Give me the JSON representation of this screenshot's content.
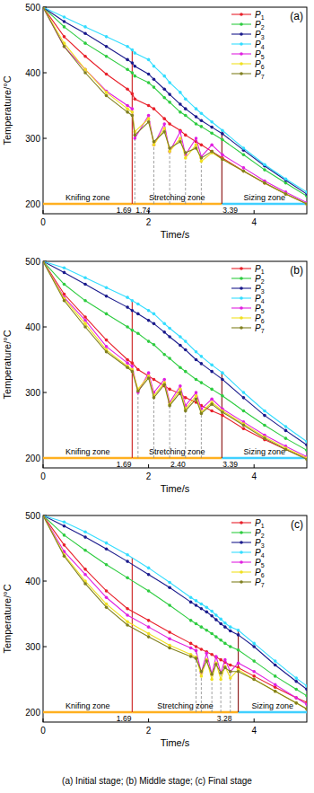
{
  "chart_data": [
    {
      "type": "line",
      "title": "(a)",
      "x_label": "Time/s",
      "y_label": "Temperature/°C",
      "x": [
        0,
        0.4,
        0.8,
        1.2,
        1.6,
        1.69,
        1.74,
        2.0,
        2.1,
        2.3,
        2.4,
        2.6,
        2.7,
        2.9,
        3.0,
        3.2,
        3.4,
        3.8,
        4.2,
        4.6,
        5.0
      ],
      "xlim": [
        0,
        5
      ],
      "xticks": [
        0,
        2,
        4
      ],
      "ylim": [
        185,
        500
      ],
      "yticks": [
        200,
        300,
        400,
        500
      ],
      "legend": "upper right",
      "marker": "circle",
      "zones": [
        {
          "name": "Knifing zone",
          "start": 0,
          "end": 1.69
        },
        {
          "name": "Stretching zone",
          "start": 1.69,
          "end": 3.39
        },
        {
          "name": "Sizing zone",
          "start": 3.39,
          "end": 5
        }
      ],
      "time_marks": [
        {
          "value": 1.69,
          "label": "1.69"
        },
        {
          "value": 1.74,
          "label": "1.74"
        },
        {
          "value": 3.39,
          "label": "3.39"
        }
      ],
      "dashed_times": [
        1.74,
        2.1,
        2.4,
        2.7,
        3.0
      ],
      "series": [
        {
          "name": "P1",
          "color": "#e8202a",
          "values": [
            500,
            455,
            425,
            398,
            375,
            368,
            360,
            350,
            345,
            330,
            322,
            312,
            305,
            295,
            290,
            280,
            270,
            250,
            232,
            215,
            200
          ]
        },
        {
          "name": "P2",
          "color": "#2ecc40",
          "values": [
            500,
            470,
            445,
            425,
            405,
            400,
            395,
            385,
            378,
            362,
            355,
            340,
            335,
            322,
            318,
            308,
            298,
            275,
            252,
            232,
            212
          ]
        },
        {
          "name": "P3",
          "color": "#1a1a8c",
          "values": [
            500,
            478,
            460,
            440,
            420,
            415,
            410,
            398,
            390,
            375,
            367,
            352,
            345,
            333,
            327,
            317,
            307,
            282,
            258,
            236,
            215
          ]
        },
        {
          "name": "P4",
          "color": "#33ddff",
          "values": [
            500,
            485,
            470,
            455,
            440,
            435,
            430,
            420,
            410,
            395,
            385,
            370,
            360,
            345,
            338,
            325,
            312,
            285,
            260,
            238,
            218
          ]
        },
        {
          "name": "P5",
          "color": "#e020e0",
          "values": [
            500,
            440,
            405,
            372,
            350,
            345,
            300,
            335,
            290,
            322,
            280,
            310,
            275,
            300,
            272,
            290,
            275,
            255,
            235,
            218,
            202
          ]
        },
        {
          "name": "P6",
          "color": "#f0e020",
          "values": [
            500,
            445,
            405,
            370,
            345,
            340,
            310,
            330,
            290,
            315,
            280,
            300,
            270,
            290,
            265,
            278,
            268,
            250,
            232,
            215,
            200
          ]
        },
        {
          "name": "P7",
          "color": "#808020",
          "values": [
            500,
            440,
            400,
            365,
            340,
            335,
            305,
            325,
            295,
            310,
            285,
            295,
            278,
            285,
            270,
            280,
            268,
            250,
            232,
            215,
            200
          ]
        }
      ]
    },
    {
      "type": "line",
      "title": "(b)",
      "x_label": "Time/s",
      "y_label": "Temperature/°C",
      "x": [
        0,
        0.4,
        0.8,
        1.2,
        1.6,
        1.69,
        1.8,
        2.0,
        2.1,
        2.3,
        2.4,
        2.6,
        2.7,
        2.9,
        3.0,
        3.2,
        3.4,
        3.8,
        4.2,
        4.6,
        5.0
      ],
      "xlim": [
        0,
        5
      ],
      "xticks": [
        0,
        2,
        4
      ],
      "ylim": [
        185,
        500
      ],
      "yticks": [
        200,
        300,
        400,
        500
      ],
      "legend": "upper right",
      "marker": "circle",
      "zones": [
        {
          "name": "Knifing zone",
          "start": 0,
          "end": 1.69
        },
        {
          "name": "Stretching zone",
          "start": 1.69,
          "end": 3.39
        },
        {
          "name": "Sizing zone",
          "start": 3.39,
          "end": 5
        }
      ],
      "time_marks": [
        {
          "value": 1.69,
          "label": "1.69"
        },
        {
          "value": 2.4,
          "label": "2.40"
        },
        {
          "value": 3.39,
          "label": "3.39"
        }
      ],
      "dashed_times": [
        1.8,
        2.1,
        2.4,
        2.7,
        3.0
      ],
      "series": [
        {
          "name": "P1",
          "color": "#e8202a",
          "values": [
            500,
            450,
            415,
            380,
            350,
            345,
            335,
            325,
            320,
            310,
            305,
            298,
            292,
            285,
            280,
            272,
            265,
            245,
            228,
            213,
            200
          ]
        },
        {
          "name": "P2",
          "color": "#2ecc40",
          "values": [
            500,
            465,
            440,
            420,
            400,
            395,
            390,
            378,
            373,
            358,
            352,
            338,
            332,
            320,
            315,
            305,
            295,
            272,
            250,
            230,
            212
          ]
        },
        {
          "name": "P3",
          "color": "#1a1a8c",
          "values": [
            500,
            483,
            465,
            447,
            430,
            425,
            420,
            410,
            405,
            392,
            385,
            372,
            365,
            350,
            344,
            332,
            320,
            292,
            265,
            242,
            220
          ]
        },
        {
          "name": "P4",
          "color": "#33ddff",
          "values": [
            500,
            490,
            475,
            460,
            445,
            440,
            435,
            425,
            420,
            405,
            398,
            385,
            378,
            362,
            355,
            342,
            330,
            300,
            272,
            248,
            225
          ]
        },
        {
          "name": "P5",
          "color": "#e020e0",
          "values": [
            500,
            445,
            410,
            370,
            345,
            340,
            300,
            330,
            300,
            320,
            285,
            310,
            280,
            300,
            275,
            290,
            275,
            255,
            235,
            218,
            202
          ]
        },
        {
          "name": "P6",
          "color": "#f0e020",
          "values": [
            500,
            443,
            405,
            365,
            340,
            335,
            305,
            325,
            295,
            315,
            282,
            305,
            275,
            295,
            270,
            285,
            272,
            252,
            232,
            215,
            200
          ]
        },
        {
          "name": "P7",
          "color": "#808020",
          "values": [
            500,
            440,
            400,
            362,
            338,
            332,
            302,
            322,
            292,
            312,
            280,
            300,
            272,
            290,
            268,
            282,
            270,
            250,
            230,
            213,
            198
          ]
        }
      ]
    },
    {
      "type": "line",
      "title": "(c)",
      "x_label": "Time/s",
      "y_label": "Temperature/°C",
      "x": [
        0,
        0.4,
        0.8,
        1.2,
        1.6,
        2.0,
        2.4,
        2.8,
        2.9,
        3.0,
        3.1,
        3.2,
        3.28,
        3.37,
        3.45,
        3.55,
        3.7,
        4.0,
        4.4,
        4.8,
        5.0
      ],
      "xlim": [
        0,
        5
      ],
      "xticks": [
        0,
        2,
        4
      ],
      "ylim": [
        185,
        500
      ],
      "yticks": [
        200,
        300,
        400,
        500
      ],
      "legend": "upper right",
      "marker": "circle",
      "zones": [
        {
          "name": "Knifing zone",
          "start": 0,
          "end": 1.69
        },
        {
          "name": "Stretching zone",
          "start": 1.69,
          "end": 3.7
        },
        {
          "name": "Sizing zone",
          "start": 3.7,
          "end": 5
        }
      ],
      "time_marks": [
        {
          "value": 1.69,
          "label": "1.69"
        },
        {
          "value": 3.28,
          "label": "3.28"
        }
      ],
      "dashed_times": [
        2.9,
        3.0,
        3.2,
        3.37,
        3.55
      ],
      "series": [
        {
          "name": "P1",
          "color": "#e8202a",
          "values": [
            500,
            455,
            418,
            385,
            358,
            340,
            322,
            305,
            300,
            296,
            292,
            288,
            284,
            280,
            276,
            272,
            268,
            255,
            238,
            222,
            215
          ]
        },
        {
          "name": "P2",
          "color": "#2ecc40",
          "values": [
            500,
            470,
            447,
            425,
            405,
            385,
            363,
            340,
            335,
            330,
            325,
            320,
            315,
            310,
            305,
            300,
            295,
            278,
            255,
            235,
            225
          ]
        },
        {
          "name": "P3",
          "color": "#1a1a8c",
          "values": [
            500,
            484,
            467,
            449,
            430,
            410,
            390,
            368,
            363,
            358,
            353,
            347,
            341,
            335,
            330,
            324,
            318,
            300,
            272,
            247,
            235
          ]
        },
        {
          "name": "P4",
          "color": "#33ddff",
          "values": [
            500,
            490,
            475,
            458,
            440,
            420,
            398,
            375,
            370,
            365,
            360,
            354,
            348,
            342,
            336,
            330,
            325,
            305,
            278,
            252,
            240
          ]
        },
        {
          "name": "P5",
          "color": "#e020e0",
          "values": [
            500,
            445,
            410,
            375,
            348,
            330,
            312,
            298,
            294,
            260,
            290,
            258,
            285,
            260,
            280,
            262,
            275,
            262,
            242,
            222,
            212
          ]
        },
        {
          "name": "P6",
          "color": "#f0e020",
          "values": [
            500,
            440,
            400,
            365,
            338,
            320,
            302,
            288,
            284,
            255,
            280,
            250,
            275,
            250,
            270,
            252,
            265,
            250,
            232,
            214,
            205
          ]
        },
        {
          "name": "P7",
          "color": "#808020",
          "values": [
            500,
            438,
            396,
            360,
            333,
            315,
            298,
            285,
            282,
            262,
            278,
            258,
            273,
            260,
            268,
            262,
            262,
            250,
            232,
            214,
            205
          ]
        }
      ]
    }
  ],
  "caption": "(a) Initial stage; (b) Middle stage; (c) Final stage"
}
